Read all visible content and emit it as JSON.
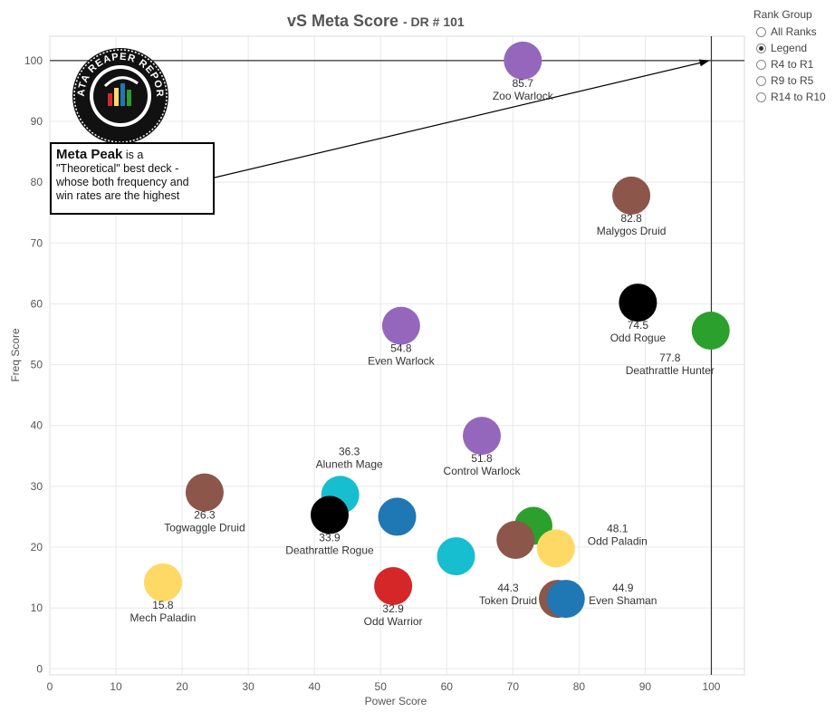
{
  "chart_data": {
    "type": "scatter",
    "title": "vS Meta Score",
    "subtitle": "- DR # 101",
    "xlabel": "Power Score",
    "ylabel": "Freq Score",
    "xlim": [
      0,
      105
    ],
    "ylim": [
      -1,
      104
    ],
    "xticks": [
      0,
      10,
      20,
      30,
      40,
      50,
      60,
      70,
      80,
      90,
      100
    ],
    "yticks": [
      0,
      10,
      20,
      30,
      40,
      50,
      60,
      70,
      80,
      90,
      100
    ],
    "grid": true,
    "reference_lines": {
      "x": 100,
      "y": 100
    },
    "points": [
      {
        "name": "Zoo Warlock",
        "score": "85.7",
        "x": 71.5,
        "y": 100.0,
        "color": "#9467bd"
      },
      {
        "name": "Malygos Druid",
        "score": "82.8",
        "x": 87.9,
        "y": 77.8,
        "color": "#8c564b"
      },
      {
        "name": "Odd Rogue",
        "score": "74.5",
        "x": 88.9,
        "y": 60.2,
        "color": "#000000"
      },
      {
        "name": "Deathrattle Hunter",
        "score": "77.8",
        "x": 99.9,
        "y": 55.6,
        "color": "#2ca02c"
      },
      {
        "name": "Even Warlock",
        "score": "54.8",
        "x": 53.1,
        "y": 56.4,
        "color": "#9467bd"
      },
      {
        "name": "Control Warlock",
        "score": "51.8",
        "x": 65.3,
        "y": 38.3,
        "color": "#9467bd"
      },
      {
        "name": "Aluneth Mage",
        "score": "36.3",
        "x": 43.9,
        "y": 28.6,
        "color": "#17becf"
      },
      {
        "name": "Togwaggle Druid",
        "score": "26.3",
        "x": 23.4,
        "y": 29.0,
        "color": "#8c564b"
      },
      {
        "name": "Deathrattle Rogue",
        "score": "33.9",
        "x": 42.3,
        "y": 25.3,
        "color": "#000000"
      },
      {
        "name": "",
        "score": "",
        "x": 52.5,
        "y": 25.0,
        "color": "#1f77b4"
      },
      {
        "name": "",
        "score": "",
        "x": 61.4,
        "y": 18.5,
        "color": "#17becf"
      },
      {
        "name": "",
        "score": "",
        "x": 73.1,
        "y": 23.5,
        "color": "#2ca02c"
      },
      {
        "name": "",
        "score": "",
        "x": 70.4,
        "y": 21.2,
        "color": "#8c564b"
      },
      {
        "name": "Odd Paladin",
        "score": "48.1",
        "x": 76.5,
        "y": 19.8,
        "color": "#ffd966"
      },
      {
        "name": "Mech Paladin",
        "score": "15.8",
        "x": 17.1,
        "y": 14.2,
        "color": "#ffd966"
      },
      {
        "name": "Odd Warrior",
        "score": "32.9",
        "x": 51.9,
        "y": 13.6,
        "color": "#d62728"
      },
      {
        "name": "Token Druid",
        "score": "44.3",
        "x": 76.8,
        "y": 11.5,
        "color": "#8c564b"
      },
      {
        "name": "Even Shaman",
        "score": "44.9",
        "x": 78.0,
        "y": 11.5,
        "color": "#1f77b4"
      }
    ],
    "annotation": {
      "bold": "Meta Peak",
      "text": " is a \"Theoretical\" best deck - whose both frequency and win rates are the highest",
      "arrow_target": {
        "x": 100,
        "y": 100
      }
    },
    "logo_text": "DATA REAPER REPORT"
  },
  "legend": {
    "title": "Rank Group",
    "options": [
      {
        "label": "All Ranks",
        "selected": false
      },
      {
        "label": "Legend",
        "selected": true
      },
      {
        "label": "R4 to R1",
        "selected": false
      },
      {
        "label": "R9 to R5",
        "selected": false
      },
      {
        "label": "R14 to R10",
        "selected": false
      }
    ]
  }
}
